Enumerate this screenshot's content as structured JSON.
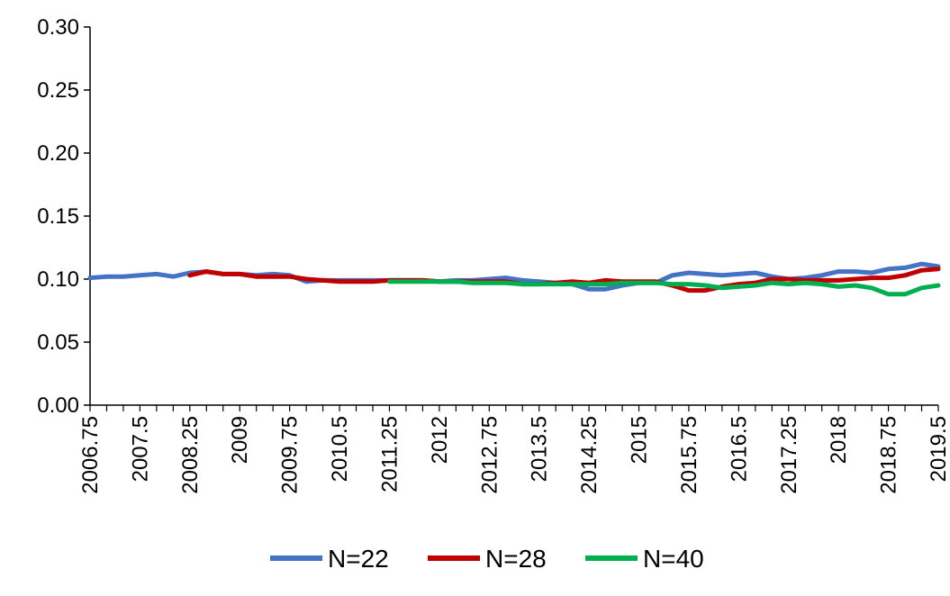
{
  "chart_data": {
    "type": "line",
    "title": "",
    "xlabel": "",
    "ylabel": "",
    "ylim": [
      0,
      0.3
    ],
    "xlim": [
      2006.75,
      2019.5
    ],
    "y_ticks": [
      "0.00",
      "0.05",
      "0.10",
      "0.15",
      "0.20",
      "0.25",
      "0.30"
    ],
    "x_ticks": [
      "2006.75",
      "2007.5",
      "2008.25",
      "2009",
      "2009.75",
      "2010.5",
      "2011.25",
      "2012",
      "2012.75",
      "2013.5",
      "2014.25",
      "2015",
      "2015.75",
      "2016.5",
      "2017.25",
      "2018",
      "2018.75",
      "2019.5"
    ],
    "grid": false,
    "legend_position": "bottom",
    "series": [
      {
        "name": "N=22",
        "color": "#4472C4",
        "x": [
          2006.75,
          2007.0,
          2007.25,
          2007.5,
          2007.75,
          2008.0,
          2008.25,
          2008.5,
          2008.75,
          2009.0,
          2009.25,
          2009.5,
          2009.75,
          2010.0,
          2010.25,
          2010.5,
          2010.75,
          2011.0,
          2011.25,
          2011.5,
          2011.75,
          2012.0,
          2012.25,
          2012.5,
          2012.75,
          2013.0,
          2013.25,
          2013.5,
          2013.75,
          2014.0,
          2014.25,
          2014.5,
          2014.75,
          2015.0,
          2015.25,
          2015.5,
          2015.75,
          2016.0,
          2016.25,
          2016.5,
          2016.75,
          2017.0,
          2017.25,
          2017.5,
          2017.75,
          2018.0,
          2018.25,
          2018.5,
          2018.75,
          2019.0,
          2019.25,
          2019.5
        ],
        "y": [
          0.101,
          0.102,
          0.102,
          0.103,
          0.104,
          0.102,
          0.105,
          0.106,
          0.104,
          0.104,
          0.103,
          0.104,
          0.103,
          0.098,
          0.099,
          0.099,
          0.099,
          0.099,
          0.099,
          0.099,
          0.099,
          0.098,
          0.099,
          0.099,
          0.1,
          0.101,
          0.099,
          0.098,
          0.097,
          0.096,
          0.092,
          0.092,
          0.095,
          0.097,
          0.097,
          0.103,
          0.105,
          0.104,
          0.103,
          0.104,
          0.105,
          0.102,
          0.1,
          0.101,
          0.103,
          0.106,
          0.106,
          0.105,
          0.108,
          0.109,
          0.112,
          0.11
        ]
      },
      {
        "name": "N=28",
        "color": "#C00000",
        "x": [
          2008.25,
          2008.5,
          2008.75,
          2009.0,
          2009.25,
          2009.5,
          2009.75,
          2010.0,
          2010.25,
          2010.5,
          2010.75,
          2011.0,
          2011.25,
          2011.5,
          2011.75,
          2012.0,
          2012.25,
          2012.5,
          2012.75,
          2013.0,
          2013.25,
          2013.5,
          2013.75,
          2014.0,
          2014.25,
          2014.5,
          2014.75,
          2015.0,
          2015.25,
          2015.5,
          2015.75,
          2016.0,
          2016.25,
          2016.5,
          2016.75,
          2017.0,
          2017.25,
          2017.5,
          2017.75,
          2018.0,
          2018.25,
          2018.5,
          2018.75,
          2019.0,
          2019.25,
          2019.5
        ],
        "y": [
          0.103,
          0.106,
          0.104,
          0.104,
          0.102,
          0.102,
          0.102,
          0.1,
          0.099,
          0.098,
          0.098,
          0.098,
          0.099,
          0.099,
          0.099,
          0.098,
          0.098,
          0.098,
          0.098,
          0.098,
          0.096,
          0.096,
          0.097,
          0.098,
          0.097,
          0.099,
          0.098,
          0.098,
          0.098,
          0.095,
          0.091,
          0.091,
          0.094,
          0.096,
          0.097,
          0.1,
          0.1,
          0.099,
          0.099,
          0.099,
          0.1,
          0.101,
          0.101,
          0.103,
          0.107,
          0.108
        ]
      },
      {
        "name": "N=40",
        "color": "#00B050",
        "x": [
          2011.25,
          2011.5,
          2011.75,
          2012.0,
          2012.25,
          2012.5,
          2012.75,
          2013.0,
          2013.25,
          2013.5,
          2013.75,
          2014.0,
          2014.25,
          2014.5,
          2014.75,
          2015.0,
          2015.25,
          2015.5,
          2015.75,
          2016.0,
          2016.25,
          2016.5,
          2016.75,
          2017.0,
          2017.25,
          2017.5,
          2017.75,
          2018.0,
          2018.25,
          2018.5,
          2018.75,
          2019.0,
          2019.25,
          2019.5
        ],
        "y": [
          0.098,
          0.098,
          0.098,
          0.098,
          0.098,
          0.097,
          0.097,
          0.097,
          0.096,
          0.096,
          0.096,
          0.096,
          0.096,
          0.096,
          0.097,
          0.097,
          0.097,
          0.096,
          0.096,
          0.095,
          0.093,
          0.094,
          0.095,
          0.097,
          0.096,
          0.097,
          0.096,
          0.094,
          0.095,
          0.093,
          0.088,
          0.088,
          0.093,
          0.095
        ]
      }
    ]
  }
}
